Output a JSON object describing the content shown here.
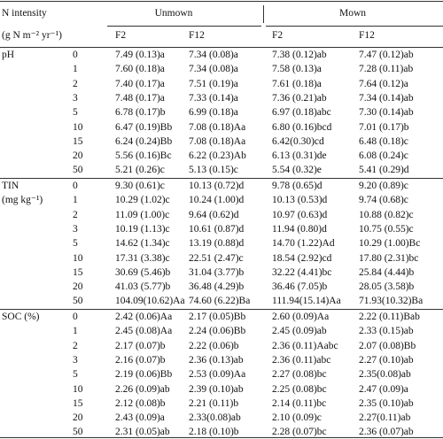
{
  "header": {
    "stub": "N intensity",
    "unit": "(g N m⁻² yr⁻¹)",
    "groups": [
      "Unmown",
      "Mown"
    ],
    "columns": [
      "F2",
      "F12",
      "F2",
      "F12"
    ]
  },
  "sections": [
    {
      "label": [
        "pH"
      ],
      "rows": [
        [
          0,
          "7.49 (0.13)a",
          "7.34 (0.08)a",
          "7.38 (0.12)ab",
          "7.47 (0.12)ab"
        ],
        [
          1,
          "7.60 (0.18)a",
          "7.34 (0.08)a",
          "7.58 (0.13)a",
          "7.28 (0.11)ab"
        ],
        [
          2,
          "7.40 (0.17)a",
          "7.51 (0.19)a",
          "7.61 (0.18)a",
          "7.64 (0.12)a"
        ],
        [
          3,
          "7.48 (0.17)a",
          "7.33 (0.14)a",
          "7.36 (0.21)ab",
          "7.34 (0.14)ab"
        ],
        [
          5,
          "6.78 (0.17)b",
          "6.99 (0.18)a",
          "6.97 (0.18)abc",
          "7.30 (0.14)ab"
        ],
        [
          10,
          "6.47 (0.19)Bb",
          "7.08 (0.18)Aa",
          "6.80 (0.16)bcd",
          "7.01 (0.17)b"
        ],
        [
          15,
          "6.24 (0.24)Bb",
          "7.08 (0.18)Aa",
          "6.42(0.30)cd",
          "6.48 (0.18)c"
        ],
        [
          20,
          "5.56 (0.16)Bc",
          "6.22 (0.23)Ab",
          "6.13 (0.31)de",
          "6.08 (0.24)c"
        ],
        [
          50,
          "5.21 (0.26)c",
          "5.13 (0.15)c",
          "5.54 (0.32)e",
          "5.41 (0.29)d"
        ]
      ]
    },
    {
      "label": [
        "TIN",
        "(mg kg⁻¹)"
      ],
      "rows": [
        [
          0,
          "9.30 (0.61)c",
          "10.13 (0.72)d",
          "9.78 (0.65)d",
          "9.20 (0.89)c"
        ],
        [
          1,
          "10.29 (1.02)c",
          "10.24 (1.00)d",
          "10.13 (0.53)d",
          "9.74 (0.68)c"
        ],
        [
          2,
          "11.09 (1.00)c",
          "9.64 (0.62)d",
          "10.97 (0.63)d",
          "10.88 (0.82)c"
        ],
        [
          3,
          "10.19 (1.13)c",
          "10.61 (0.87)d",
          "11.94 (0.80)d",
          "10.75 (0.55)c"
        ],
        [
          5,
          "14.62 (1.34)c",
          "13.19 (0.88)d",
          "14.70 (1.22)Ad",
          "10.29 (1.00)Bc"
        ],
        [
          10,
          "17.31 (3.38)c",
          "22.51 (2.47)c",
          "18.54 (2.92)cd",
          "17.80 (2.31)bc"
        ],
        [
          15,
          "30.69 (5.46)b",
          "31.04 (3.77)b",
          "32.22 (4.41)bc",
          "25.84 (4.44)b"
        ],
        [
          20,
          "41.03 (5.77)b",
          "36.48 (4.29)b",
          "36.46 (7.05)b",
          "28.05 (3.58)b"
        ],
        [
          50,
          "104.09(10.62)Aa",
          "74.60 (6.22)Ba",
          "111.94(15.14)Aa",
          "71.93(10.32)Ba"
        ]
      ]
    },
    {
      "label": [
        "SOC (%)"
      ],
      "rows": [
        [
          0,
          "2.42 (0.06)Aa",
          "2.17 (0.05)Bb",
          "2.60 (0.09)Aa",
          "2.22 (0.11)Bab"
        ],
        [
          1,
          "2.45 (0.08)Aa",
          "2.24 (0.06)Bb",
          "2.45 (0.09)ab",
          "2.33 (0.15)ab"
        ],
        [
          2,
          "2.17 (0.07)b",
          "2.22 (0.06)b",
          "2.36 (0.11)Aabc",
          "2.07 (0.08)Bb"
        ],
        [
          3,
          "2.16 (0.07)b",
          "2.36 (0.13)ab",
          "2.36 (0.11)abc",
          "2.27 (0.10)ab"
        ],
        [
          5,
          "2.19 (0.06)Bb",
          "2.53 (0.09)Aa",
          "2.27 (0.08)bc",
          "2.35(0.08)ab"
        ],
        [
          10,
          "2.26 (0.09)ab",
          "2.39 (0.10)ab",
          "2.25 (0.08)bc",
          "2.47 (0.09)a"
        ],
        [
          15,
          "2.12 (0.08)b",
          "2.21 (0.11)b",
          "2.14 (0.11)bc",
          "2.35 (0.10)ab"
        ],
        [
          20,
          "2.43 (0.09)a",
          "2.33(0.08)ab",
          "2.10 (0.09)c",
          "2.27(0.11)ab"
        ],
        [
          50,
          "2.31 (0.05)ab",
          "2.18 (0.10)b",
          "2.28 (0.07)bc",
          "2.36 (0.07)ab"
        ]
      ]
    }
  ]
}
